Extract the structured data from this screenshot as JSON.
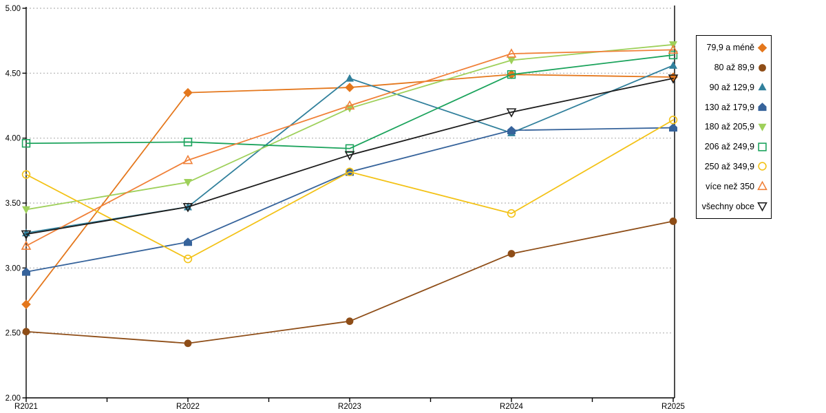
{
  "chart_data": {
    "type": "line",
    "categories": [
      "R2021",
      "R2022",
      "R2023",
      "R2024",
      "R2025"
    ],
    "ylim": [
      2.0,
      5.0
    ],
    "ytick_step": 0.5,
    "ytick_labels": [
      "2.00",
      "2.50",
      "3.00",
      "3.50",
      "4.00",
      "4.50",
      "5.00"
    ],
    "xlabel": "",
    "ylabel": "",
    "title": "",
    "grid": "horizontal-dashed",
    "grid_color": "#b3b3b3",
    "axis_color": "#000000",
    "legend_position": "right",
    "series": [
      {
        "name": "79,9 a méně",
        "color": "#e4771c",
        "marker": "diamond",
        "fill": "solid",
        "values": [
          2.72,
          4.35,
          4.39,
          4.49,
          4.47
        ]
      },
      {
        "name": "80 až 89,9",
        "color": "#8e4d17",
        "marker": "circle",
        "fill": "solid",
        "values": [
          2.51,
          2.42,
          2.59,
          3.11,
          3.36
        ]
      },
      {
        "name": "90 až 129,9",
        "color": "#31809c",
        "marker": "triangle-up",
        "fill": "solid",
        "values": [
          3.27,
          3.47,
          4.46,
          4.04,
          4.56
        ]
      },
      {
        "name": "130 až 179,9",
        "color": "#36639b",
        "marker": "pentagon",
        "fill": "solid",
        "values": [
          2.97,
          3.2,
          3.74,
          4.06,
          4.08
        ]
      },
      {
        "name": "180 až 205,9",
        "color": "#9ed05a",
        "marker": "triangle-down",
        "fill": "solid",
        "values": [
          3.45,
          3.66,
          4.23,
          4.6,
          4.72
        ]
      },
      {
        "name": "206 až 249,9",
        "color": "#1ba35c",
        "marker": "square",
        "fill": "open",
        "values": [
          3.96,
          3.97,
          3.92,
          4.49,
          4.64
        ]
      },
      {
        "name": "250 až 349,9",
        "color": "#f3c216",
        "marker": "circle",
        "fill": "open",
        "values": [
          3.72,
          3.07,
          3.74,
          3.42,
          4.14
        ]
      },
      {
        "name": "více než 350",
        "color": "#f08038",
        "marker": "triangle-up",
        "fill": "open",
        "values": [
          3.17,
          3.83,
          4.25,
          4.65,
          4.68
        ]
      },
      {
        "name": "všechny obce",
        "color": "#1c1c1c",
        "marker": "triangle-down",
        "fill": "open",
        "values": [
          3.26,
          3.47,
          3.87,
          4.2,
          4.46
        ]
      }
    ]
  }
}
